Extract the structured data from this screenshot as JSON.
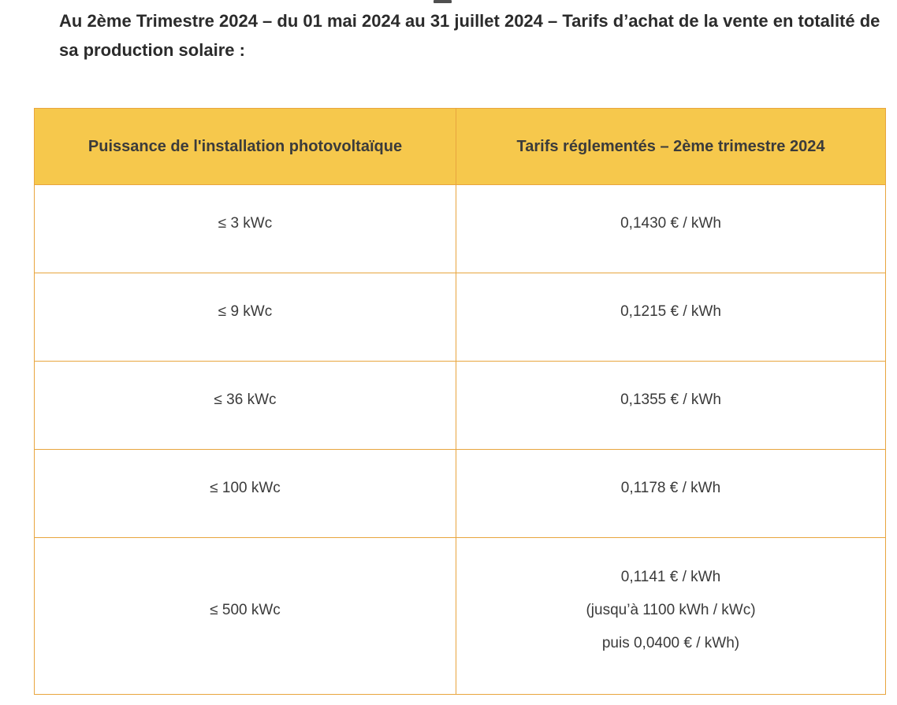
{
  "page": {
    "background": "#FFFFFF",
    "intro_text": "Au 2ème Trimestre 2024 – du 01 mai 2024 au 31 juillet 2024 – Tarifs d’achat de la vente en totalité de sa production solaire :"
  },
  "table": {
    "columns": [
      "Puissance de l'installation photovoltaïque",
      "Tarifs réglementés – 2ème trimestre 2024"
    ],
    "rows": [
      {
        "power": "≤ 3 kWc",
        "tariff_lines": [
          "0,1430 € / kWh"
        ]
      },
      {
        "power": "≤ 9 kWc",
        "tariff_lines": [
          "0,1215 € / kWh"
        ]
      },
      {
        "power": "≤ 36 kWc",
        "tariff_lines": [
          "0,1355 € / kWh"
        ]
      },
      {
        "power": "≤ 100 kWc",
        "tariff_lines": [
          "0,1178 € / kWh"
        ]
      },
      {
        "power": "≤ 500 kWc",
        "tariff_lines": [
          "0,1141 € / kWh",
          "(jusqu’à 1100 kWh / kWc)",
          "puis 0,0400 € / kWh)"
        ]
      }
    ],
    "colors": {
      "header_background": "#F6C84C",
      "border": "#E8A53E",
      "header_text": "#3B3B3B",
      "cell_text": "#3A3A3A",
      "intro_text": "#2B2B2B"
    }
  }
}
